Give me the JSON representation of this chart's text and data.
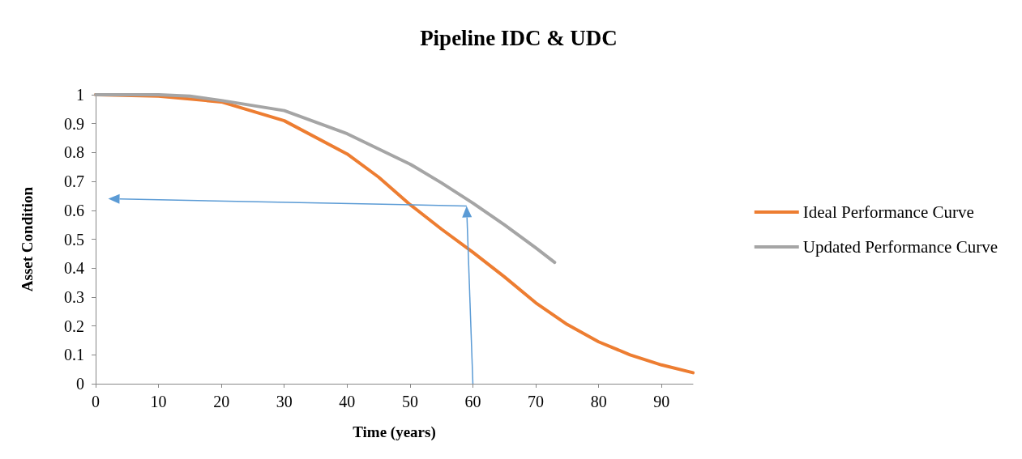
{
  "chart_data": {
    "type": "line",
    "title": "Pipeline IDC & UDC",
    "xlabel": "Time (years)",
    "ylabel": "Asset Condition",
    "xlim": [
      0,
      95
    ],
    "xticks": [
      0,
      10,
      20,
      30,
      40,
      50,
      60,
      70,
      80,
      90
    ],
    "ylim": [
      0,
      1
    ],
    "yticks": [
      0,
      0.1,
      0.2,
      0.3,
      0.4,
      0.5,
      0.6,
      0.7,
      0.8,
      0.9,
      1
    ],
    "grid": false,
    "legend": "right",
    "marker": "none",
    "line_style": "solid",
    "series": [
      {
        "name": "Ideal Performance Curve",
        "color": "#ed7d31",
        "x": [
          0,
          10,
          20,
          30,
          40,
          45,
          50,
          55,
          60,
          65,
          70,
          75,
          80,
          85,
          90,
          95
        ],
        "values": [
          1,
          0.995,
          0.975,
          0.91,
          0.795,
          0.715,
          0.62,
          0.535,
          0.455,
          0.37,
          0.28,
          0.205,
          0.145,
          0.1,
          0.065,
          0.038
        ]
      },
      {
        "name": "Updated Performance Curve",
        "color": "#a5a5a5",
        "x": [
          0,
          10,
          15,
          20,
          30,
          40,
          50,
          55,
          60,
          65,
          70,
          73
        ],
        "values": [
          1,
          1,
          0.995,
          0.98,
          0.945,
          0.865,
          0.76,
          0.695,
          0.625,
          0.55,
          0.47,
          0.42
        ]
      }
    ]
  }
}
